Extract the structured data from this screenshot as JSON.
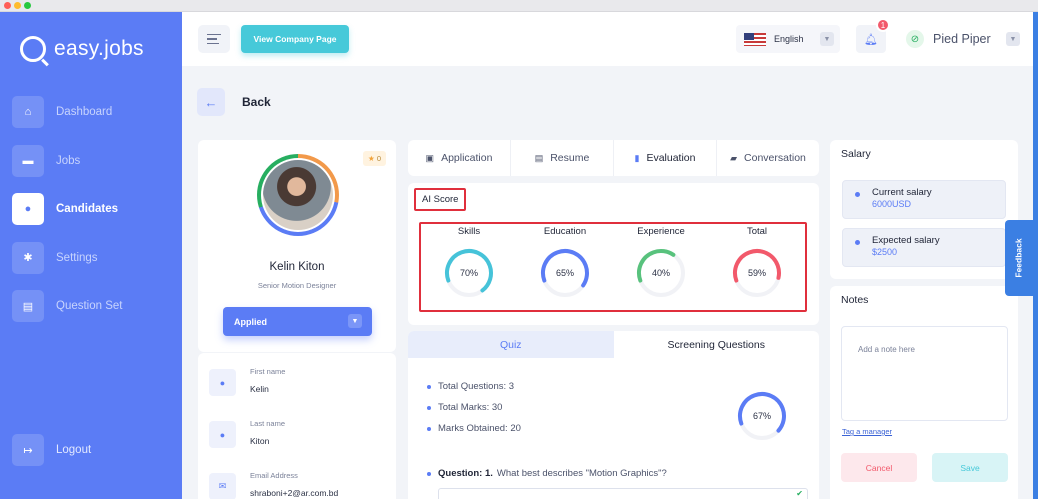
{
  "app": {
    "logo_text": "easy.jobs"
  },
  "sidebar": {
    "items": [
      {
        "label": "Dashboard",
        "icon": "home-icon"
      },
      {
        "label": "Jobs",
        "icon": "briefcase-icon"
      },
      {
        "label": "Candidates",
        "icon": "user-icon",
        "active": true
      },
      {
        "label": "Settings",
        "icon": "gear-icon"
      },
      {
        "label": "Question Set",
        "icon": "document-icon"
      }
    ],
    "logout_label": "Logout"
  },
  "topbar": {
    "view_company_label": "View Company Page",
    "language": "English",
    "notification_count": "1",
    "company_name": "Pied Piper"
  },
  "back_label": "Back",
  "candidate": {
    "rating": "0",
    "name": "Kelin Kiton",
    "role": "Senior Motion Designer",
    "status": "Applied",
    "info": [
      {
        "label": "First name",
        "value": "Kelin"
      },
      {
        "label": "Last name",
        "value": "Kiton"
      },
      {
        "label": "Email Address",
        "value": "shraboni+2@ar.com.bd"
      }
    ]
  },
  "tabs": [
    {
      "label": "Application",
      "icon": "application-icon"
    },
    {
      "label": "Resume",
      "icon": "resume-icon"
    },
    {
      "label": "Evaluation",
      "icon": "evaluation-icon",
      "active": true
    },
    {
      "label": "Conversation",
      "icon": "conversation-icon"
    }
  ],
  "ai_score": {
    "title": "AI Score",
    "scores": [
      {
        "label": "Skills",
        "value": "70%",
        "percent": 70,
        "color": "#46c3d9"
      },
      {
        "label": "Education",
        "value": "65%",
        "percent": 65,
        "color": "#5b7cf5"
      },
      {
        "label": "Experience",
        "value": "40%",
        "percent": 40,
        "color": "#58c27d"
      },
      {
        "label": "Total",
        "value": "59%",
        "percent": 59,
        "color": "#f2596b"
      }
    ]
  },
  "quiz": {
    "tab_quiz": "Quiz",
    "tab_screening": "Screening Questions",
    "total_questions": "Total Questions: 3",
    "total_marks": "Total Marks: 30",
    "marks_obtained": "Marks Obtained: 20",
    "score": "67%",
    "score_percent": 67,
    "question_prefix": "Question: 1.",
    "question_text": "What best describes \"Motion Graphics\"?"
  },
  "salary": {
    "title": "Salary",
    "current_label": "Current salary",
    "current_value": "6000USD",
    "expected_label": "Expected salary",
    "expected_value": "$2500"
  },
  "feedback_label": "Feedback",
  "notes": {
    "title": "Notes",
    "placeholder": "Add a note here",
    "tag_manager": "Tag a manager",
    "cancel_label": "Cancel",
    "save_label": "Save"
  },
  "colors": {
    "primary": "#5b7cf5",
    "accent": "#46c9d9",
    "danger": "#f2596b",
    "highlight_box": "#e02f3c"
  }
}
